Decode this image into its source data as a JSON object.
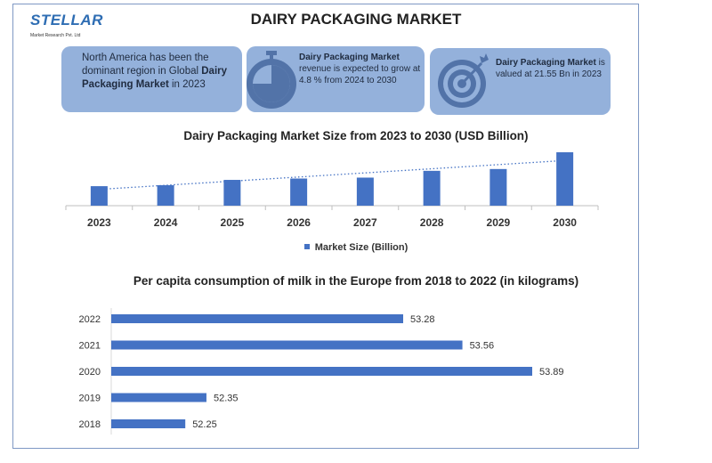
{
  "header": {
    "logo": "STELLAR",
    "logo_sub": "Market Research Pvt. Ltd",
    "title": "DAIRY PACKAGING MARKET"
  },
  "cards": [
    {
      "icon": "globe",
      "pre": "North America has been the dominant region in Global ",
      "bold": "Dairy Packaging Market",
      "post": " in 2023"
    },
    {
      "icon": "stopwatch-icon",
      "bold": "Dairy Packaging Market",
      "post": " revenue is expected to grow at 4.8 % from 2024 to 2030"
    },
    {
      "icon": "target-icon",
      "bold": "Dairy Packaging Market",
      "post": " is valued at 21.55 Bn in 2023"
    }
  ],
  "colors": {
    "bar": "#4472c4",
    "card": "#94b1db",
    "icon": "#5273a8",
    "trend": "#4472c4"
  },
  "chart_data": [
    {
      "type": "bar",
      "title": "Dairy Packaging Market Size from 2023 to 2030 (USD Billion)",
      "categories": [
        "2023",
        "2024",
        "2025",
        "2026",
        "2027",
        "2028",
        "2029",
        "2030"
      ],
      "series": [
        {
          "name": "Market Size (Billion)",
          "values": [
            21.55,
            22.6,
            28.5,
            30.0,
            31.0,
            38.5,
            40.5,
            59.0
          ]
        }
      ],
      "ylim": [
        0,
        60
      ],
      "trendline": "linear dotted",
      "legend": "bottom",
      "grid": false
    },
    {
      "type": "bar",
      "orientation": "horizontal",
      "title": "Per capita consumption of milk in the Europe from 2018 to 2022 (in kilograms)",
      "categories": [
        "2022",
        "2021",
        "2020",
        "2019",
        "2018"
      ],
      "values": [
        53.28,
        53.56,
        53.89,
        52.35,
        52.25
      ],
      "data_labels": [
        "53.28",
        "53.56",
        "53.89",
        "52.35",
        "52.25"
      ],
      "grid": false
    }
  ]
}
